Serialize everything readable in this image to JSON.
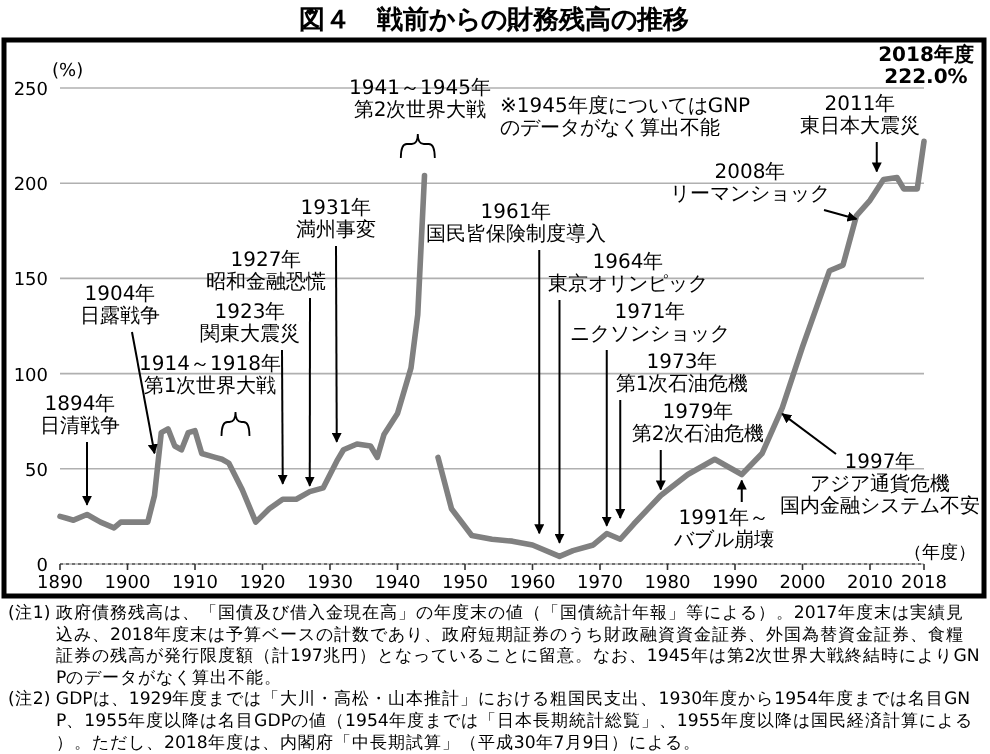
{
  "chart_data": {
    "type": "line",
    "title": "図４　戦前からの財務残高の推移",
    "ylabel": "(%)",
    "xlabel": "（年度）",
    "x": [
      1890,
      1891,
      1892,
      1894,
      1896,
      1898,
      1899,
      1903,
      1904,
      1905,
      1906,
      1907,
      1908,
      1909,
      1910,
      1911,
      1913,
      1914,
      1915,
      1917,
      1919,
      1921,
      1923,
      1925,
      1927,
      1929,
      1931,
      1932,
      1934,
      1936,
      1937,
      1938,
      1940,
      1942,
      1943,
      1944,
      1945,
      1946,
      1948,
      1951,
      1954,
      1957,
      1960,
      1964,
      1966,
      1969,
      1971,
      1973,
      1975,
      1979,
      1983,
      1987,
      1991,
      1994,
      1997,
      2000,
      2002,
      2004,
      2006,
      2008,
      2010,
      2012,
      2014,
      2015,
      2017,
      2018
    ],
    "values": [
      25,
      24,
      23,
      26,
      22,
      19,
      22,
      22,
      36,
      69,
      71,
      62,
      60,
      69,
      70,
      58,
      56,
      55,
      53,
      39,
      22,
      29,
      34,
      34,
      38,
      40,
      54,
      60,
      63,
      62,
      56,
      68,
      79,
      103,
      131,
      204,
      null,
      56,
      29,
      15,
      13,
      12,
      10,
      4,
      7,
      10,
      16,
      13,
      21,
      36,
      47,
      55,
      47,
      58,
      82,
      114,
      134,
      154,
      157,
      183,
      191,
      202,
      203,
      197,
      197,
      222.0
    ],
    "color": "#808080",
    "xlim": [
      1890,
      2018
    ],
    "xticks": [
      1890,
      1900,
      1910,
      1920,
      1930,
      1940,
      1950,
      1960,
      1970,
      1980,
      1990,
      2000,
      2010,
      2018
    ],
    "ylim": [
      0,
      250
    ],
    "yticks": [
      0,
      50,
      100,
      150,
      200,
      250
    ],
    "grid": "y",
    "annotations": [
      {
        "text": "1894年日清戦争",
        "x": 1894,
        "y": 28
      },
      {
        "text": "1904年日露戦争",
        "x": 1904,
        "y": 55
      },
      "1914～1918年第1次世界大戦",
      {
        "text": "1923年関東大震災",
        "x": 1923,
        "y": 39
      },
      {
        "text": "1927年昭和金融恐慌",
        "x": 1927,
        "y": 38
      },
      {
        "text": "1931年満州事変",
        "x": 1931,
        "y": 61
      },
      "1941～1945年第2次世界大戦",
      "※1945年度についてはGNPのデータがなく算出不能",
      {
        "text": "1961年国民皆保険制度導入",
        "x": 1961,
        "y": 13
      },
      {
        "text": "1964年東京オリンピック",
        "x": 1964,
        "y": 8
      },
      {
        "text": "1971年ニクソンショック",
        "x": 1971,
        "y": 17
      },
      {
        "text": "1973年第1次石油危機",
        "x": 1973,
        "y": 21
      },
      {
        "text": "1979年第2次石油危機",
        "x": 1979,
        "y": 36
      },
      {
        "text": "1991年～バブル崩壊",
        "x": 1991,
        "y": 47
      },
      {
        "text": "1997年アジア通貨危機国内金融システム不安",
        "x": 1997,
        "y": 82
      },
      {
        "text": "2008年リーマンショック",
        "x": 2008,
        "y": 178
      },
      {
        "text": "2011年東日本大震災",
        "x": 2011,
        "y": 203
      },
      {
        "text": "2018年度222.0%",
        "x": 2018,
        "y": 222.0
      },
      "(注1) 政府債務残高は、「国債及び借入金現在高」の年度末の値（「国債統計年報」等による）。2017年度末は実績見込み、2018年度末は予算ベースの計数であり、政府短期証券のうち財政融資資金証券、外国為替資金証券、食糧証券の残高が発行限度額（計197兆円）となっていることに留意。なお、1945年は第2次世界大戦終結時によりGNPのデータがなく算出不能。",
      "(注2) GDPは、1929年度までは「大川・高松・山本推計」における粗国民支出、1930年度から1954年度までは名目GNP、1955年度以降は名目GDPの値（1954年度までは「日本長期統計総覧」、1955年度以降は国民経済計算による）。ただし、2018年度は、内閣府「中長期試算」（平成30年7月9日）による。"
    ]
  }
}
